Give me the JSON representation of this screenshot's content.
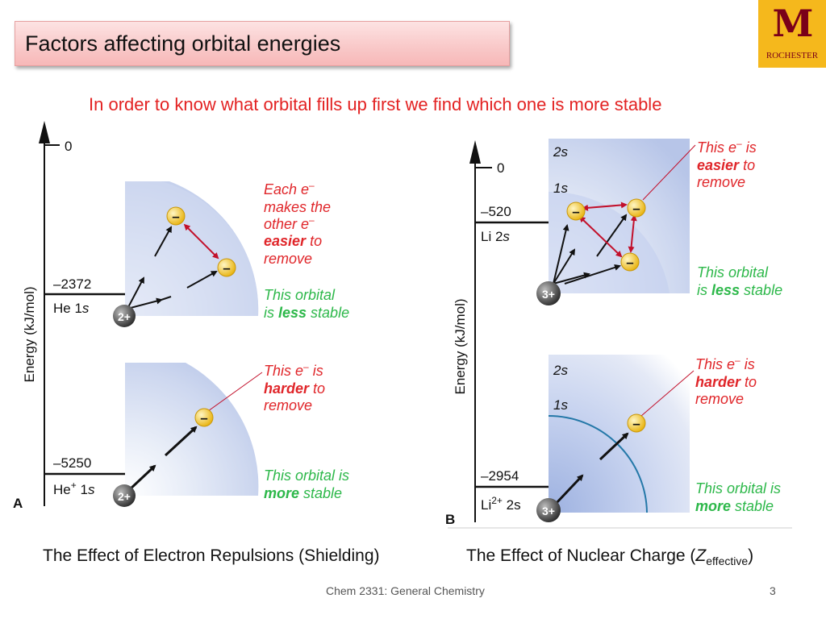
{
  "slide": {
    "title": "Factors affecting orbital energies",
    "subtitle": "In order to know what orbital fills up first we find which one is more stable",
    "footer": "Chem 2331: General Chemistry",
    "page_number": "3"
  },
  "logo": {
    "text": "ROCHESTER"
  },
  "panel_a": {
    "y_axis_label": "Energy (kJ/mol)",
    "zero_label": "0",
    "corner_label": "A",
    "top": {
      "energy": "–2372",
      "species": "He 1",
      "orbital": "s",
      "nucleus": "2+",
      "electron": "–",
      "note1": [
        "Each e",
        " makes the",
        "other e",
        "easier",
        " to",
        "remove"
      ],
      "note2": [
        "This orbital",
        "is ",
        "less",
        " stable"
      ]
    },
    "bottom": {
      "energy": "–5250",
      "species": "He",
      "charge": "+",
      "orbital_num": " 1",
      "orbital": "s",
      "nucleus": "2+",
      "note1": [
        "This e",
        " is",
        "harder",
        " to",
        "remove"
      ],
      "note2": [
        "This orbital is",
        "more",
        " stable"
      ]
    },
    "caption": "The Effect of Electron Repulsions (Shielding)"
  },
  "panel_b": {
    "y_axis_label": "Energy (kJ/mol)",
    "zero_label": "0",
    "corner_label": "B",
    "top": {
      "label_2s": "2s",
      "label_1s": "1s",
      "energy": "–520",
      "species": "Li 2",
      "orbital": "s",
      "nucleus": "3+",
      "note1": [
        "This e",
        " is",
        "easier",
        " to",
        "remove"
      ],
      "note2": [
        "This orbital",
        "is ",
        "less",
        " stable"
      ]
    },
    "bottom": {
      "label_2s": "2s",
      "label_1s": "1s",
      "energy": "–2954",
      "species": "Li",
      "charge": "2+",
      "orbital": " 2s",
      "nucleus": "3+",
      "note1": [
        "This e",
        " is",
        "harder",
        " to",
        "remove"
      ],
      "note2": [
        "This orbital is",
        "more",
        " stable"
      ]
    },
    "caption_main": "The Effect of Nuclear Charge (",
    "caption_z": "Z",
    "caption_sub": "effective",
    "caption_end": ")"
  },
  "colors": {
    "title_bg": "#f9caca",
    "subtitle": "#e32222",
    "note_red": "#e0262a",
    "note_green": "#2db84a",
    "electron": "#f2c21b",
    "logo_maroon": "#7a0019",
    "logo_gold": "#f5b81c"
  }
}
